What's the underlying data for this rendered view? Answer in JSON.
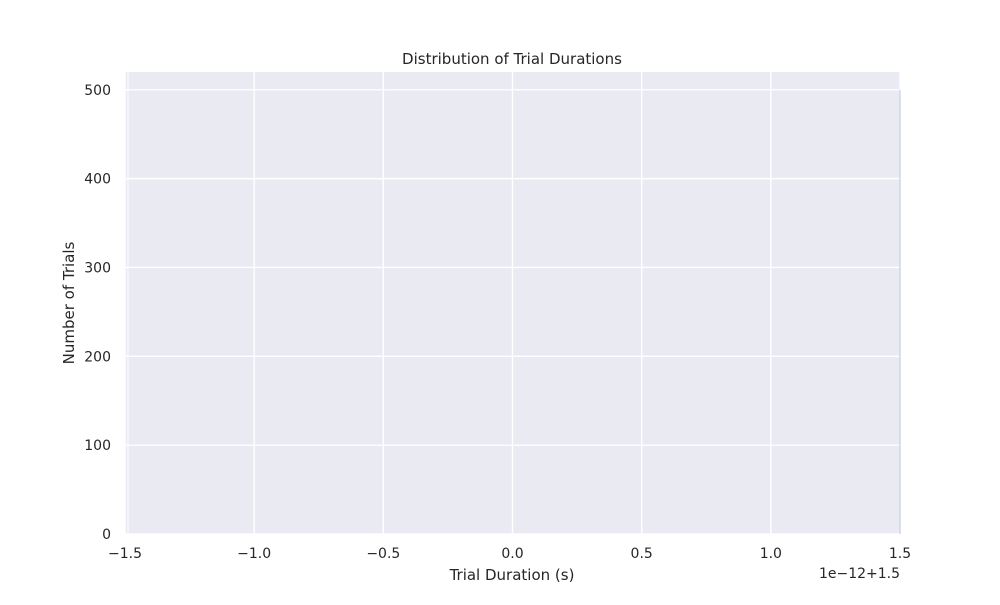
{
  "chart_data": {
    "type": "bar",
    "title": "Distribution of Trial Durations",
    "xlabel": "Trial Duration (s)",
    "ylabel": "Number of Trials",
    "x_offset_label": "1e−12+1.5",
    "xlim": [
      -1.5,
      1.5
    ],
    "ylim": [
      0,
      520
    ],
    "xticks": [
      -1.5,
      -1.0,
      -0.5,
      0.0,
      0.5,
      1.0,
      1.5
    ],
    "xtick_labels": [
      "−1.5",
      "−1.0",
      "−0.5",
      "0.0",
      "0.5",
      "1.0",
      "1.5"
    ],
    "yticks": [
      0,
      100,
      200,
      300,
      400,
      500
    ],
    "ytick_labels": [
      "0",
      "100",
      "200",
      "300",
      "400",
      "500"
    ],
    "grid": true,
    "x": [
      1.5
    ],
    "values": [
      500
    ]
  },
  "colors": {
    "plot_background": "#eaeaf2",
    "grid": "#ffffff",
    "text": "#262626",
    "bar": "#4c72b0"
  }
}
